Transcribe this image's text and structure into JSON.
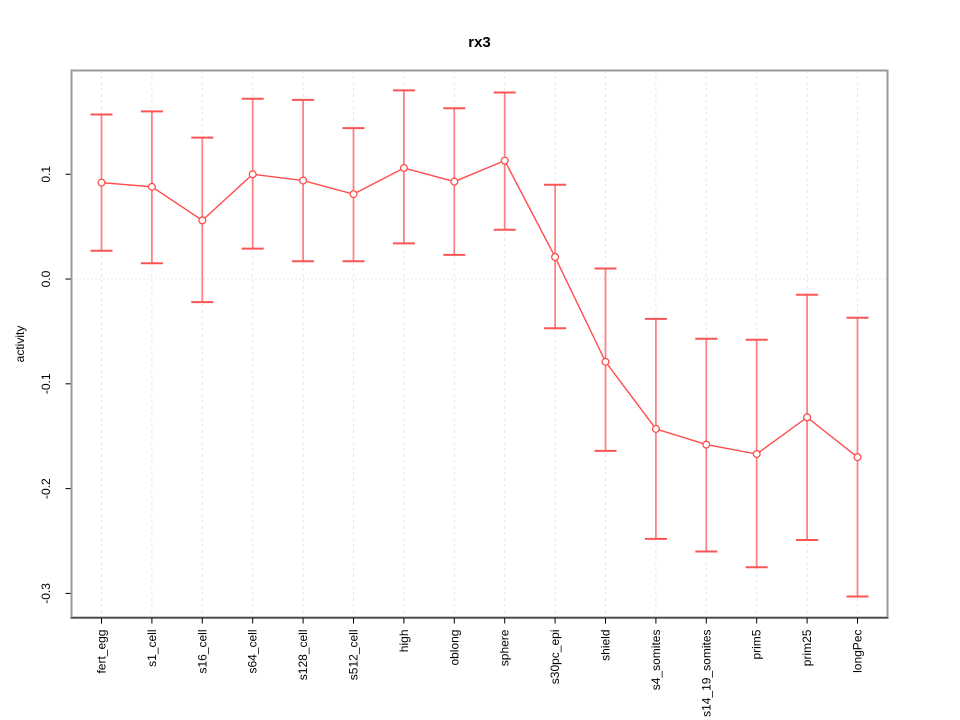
{
  "chart_data": {
    "type": "line",
    "title": "rx3",
    "xlabel": "",
    "ylabel": "activity",
    "categories": [
      "fert_egg",
      "s1_cell",
      "s16_cell",
      "s64_cell",
      "s128_cell",
      "s512_cell",
      "high",
      "oblong",
      "sphere",
      "s30pc_epi",
      "shield",
      "s4_somites",
      "s14_19_somites",
      "prim5",
      "prim25",
      "longPec"
    ],
    "series": [
      {
        "name": "rx3",
        "values": [
          0.092,
          0.088,
          0.056,
          0.1,
          0.094,
          0.081,
          0.106,
          0.093,
          0.113,
          0.021,
          -0.079,
          -0.143,
          -0.158,
          -0.167,
          -0.132,
          -0.17
        ],
        "error_low": [
          0.027,
          0.015,
          -0.022,
          0.029,
          0.017,
          0.017,
          0.034,
          0.023,
          0.047,
          -0.047,
          -0.164,
          -0.248,
          -0.26,
          -0.275,
          -0.249,
          -0.303
        ],
        "error_high": [
          0.157,
          0.16,
          0.135,
          0.172,
          0.171,
          0.144,
          0.18,
          0.163,
          0.178,
          0.09,
          0.01,
          -0.038,
          -0.057,
          -0.058,
          -0.015,
          -0.037
        ]
      }
    ],
    "ylim": [
      -0.323,
      0.199
    ],
    "yticks": [
      0.1,
      0.0,
      -0.1,
      -0.2,
      -0.3
    ],
    "ytick_labels": [
      "0.1",
      "0.0",
      "-0.1",
      "-0.2",
      "-0.3"
    ],
    "legend": "none",
    "grid_vertical_dashed": true,
    "zero_line_dotted": true,
    "marker": "open-circle",
    "colors": {
      "series_line": "#ff4d4d",
      "error_bar": "#fb8383",
      "error_cap": "#f95555",
      "grid": "#dcdcdc",
      "zero_line": "#d4d4d4",
      "box_border": "#9a9a9a",
      "axis_line": "#000000",
      "text": "#000000",
      "background": "#ffffff"
    }
  }
}
